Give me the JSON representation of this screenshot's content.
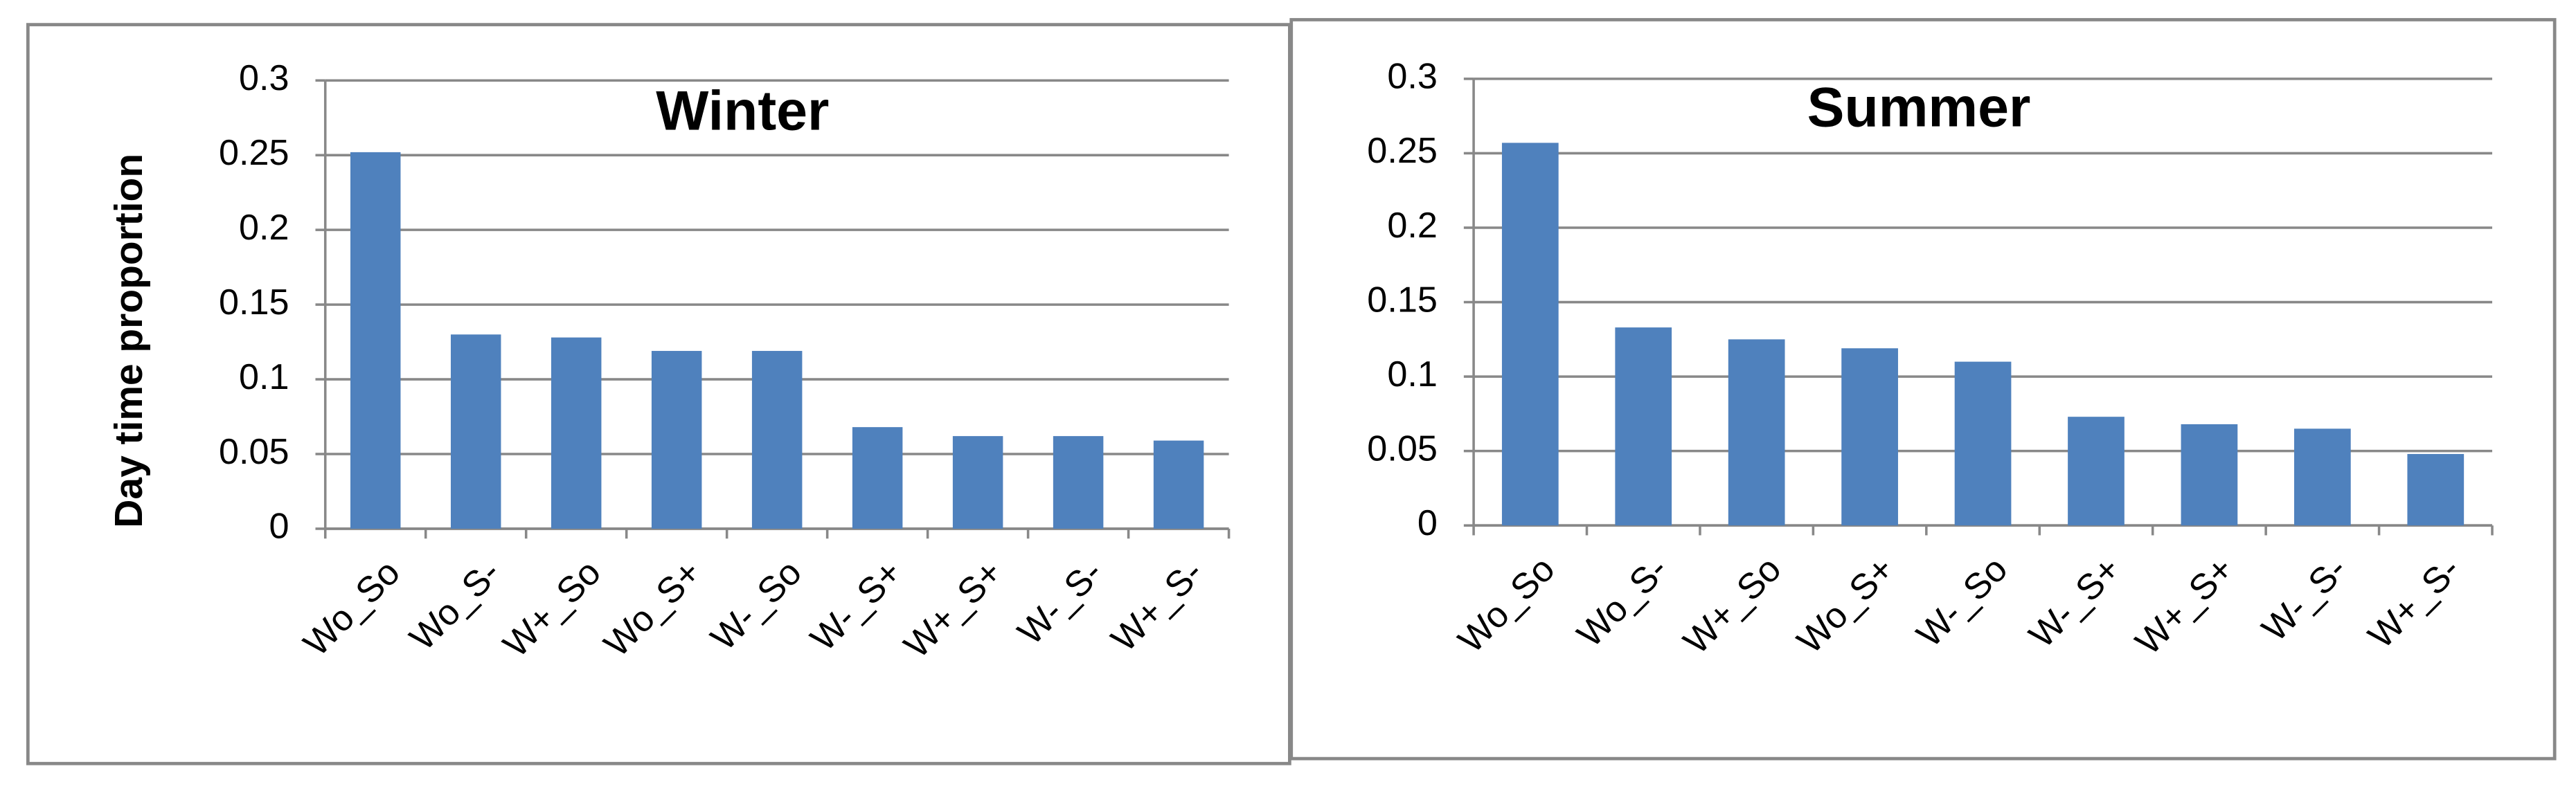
{
  "chart_data": [
    {
      "type": "bar",
      "title": "Winter",
      "y_label": "Day time proportion",
      "categories": [
        "Wo_So",
        "Wo_S-",
        "W+_So",
        "Wo_S+",
        "W-_So",
        "W-_S+",
        "W+_S+",
        "W-_S-",
        "W+_S-"
      ],
      "values": [
        0.252,
        0.13,
        0.128,
        0.119,
        0.119,
        0.068,
        0.062,
        0.062,
        0.059
      ],
      "color": "#4f81bd",
      "ylim": [
        0,
        0.3
      ],
      "yticks": [
        0,
        0.05,
        0.1,
        0.15,
        0.2,
        0.25,
        0.3
      ],
      "grid": true
    },
    {
      "type": "bar",
      "title": "Summer",
      "categories": [
        "Wo_So",
        "Wo_S-",
        "W+_So",
        "Wo_S+",
        "W-_So",
        "W-_S+",
        "W+_S+",
        "W-_S-",
        "W+_S-"
      ],
      "values": [
        0.257,
        0.133,
        0.125,
        0.119,
        0.11,
        0.073,
        0.068,
        0.065,
        0.048
      ],
      "color": "#4f81bd",
      "ylim": [
        0,
        0.3
      ],
      "yticks": [
        0,
        0.05,
        0.1,
        0.15,
        0.2,
        0.25,
        0.3
      ],
      "grid": true
    }
  ]
}
